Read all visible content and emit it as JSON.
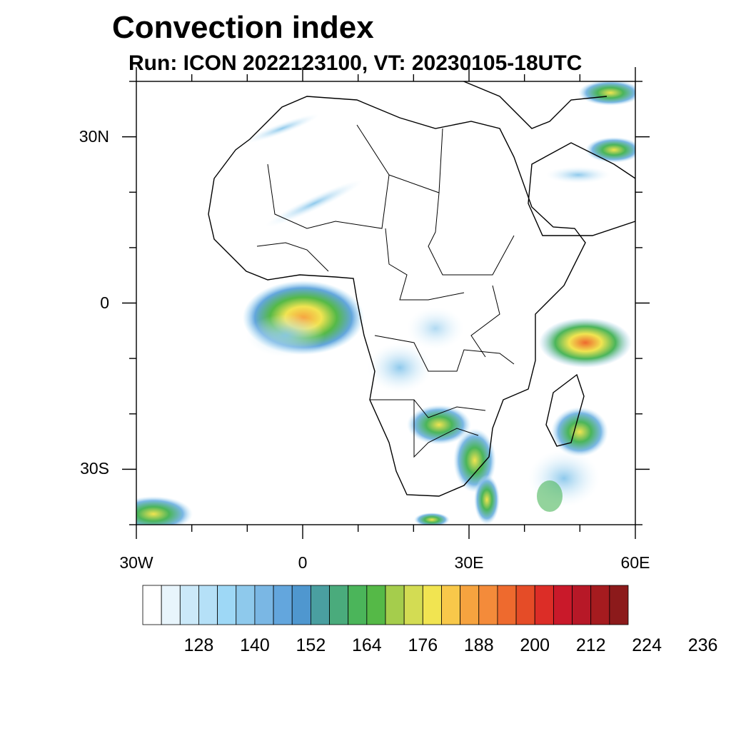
{
  "title": "Convection index",
  "subtitle": "Run: ICON 2022123100,  VT: 20230105-18UTC",
  "map": {
    "lon_range": [
      -30,
      60
    ],
    "lat_range": [
      -40,
      40
    ],
    "lat_ticks": [
      {
        "value": 30,
        "label": "30N"
      },
      {
        "value": 0,
        "label": "0"
      },
      {
        "value": -30,
        "label": "30S"
      }
    ],
    "lon_ticks": [
      {
        "value": -30,
        "label": "30W"
      },
      {
        "value": 0,
        "label": "0"
      },
      {
        "value": 30,
        "label": "30E"
      },
      {
        "value": 60,
        "label": "60E"
      }
    ]
  },
  "colorbar": {
    "colors": [
      "#ffffff",
      "#e8f5fc",
      "#cbe9f9",
      "#b5e0f7",
      "#9ed8f6",
      "#8ec9ec",
      "#7ab7e4",
      "#63a6dd",
      "#4f97cf",
      "#4a9fa0",
      "#4aab7c",
      "#4bb55a",
      "#55b947",
      "#a5cd4c",
      "#d3dc53",
      "#f1e451",
      "#f8c84a",
      "#f6a33f",
      "#f48b3a",
      "#ee6a2e",
      "#e54c27",
      "#dc2d27",
      "#c9192a",
      "#b71827",
      "#a51b1f",
      "#8c1a1b"
    ],
    "labels": [
      "128",
      "140",
      "152",
      "164",
      "176",
      "188",
      "200",
      "212",
      "224",
      "236"
    ]
  }
}
